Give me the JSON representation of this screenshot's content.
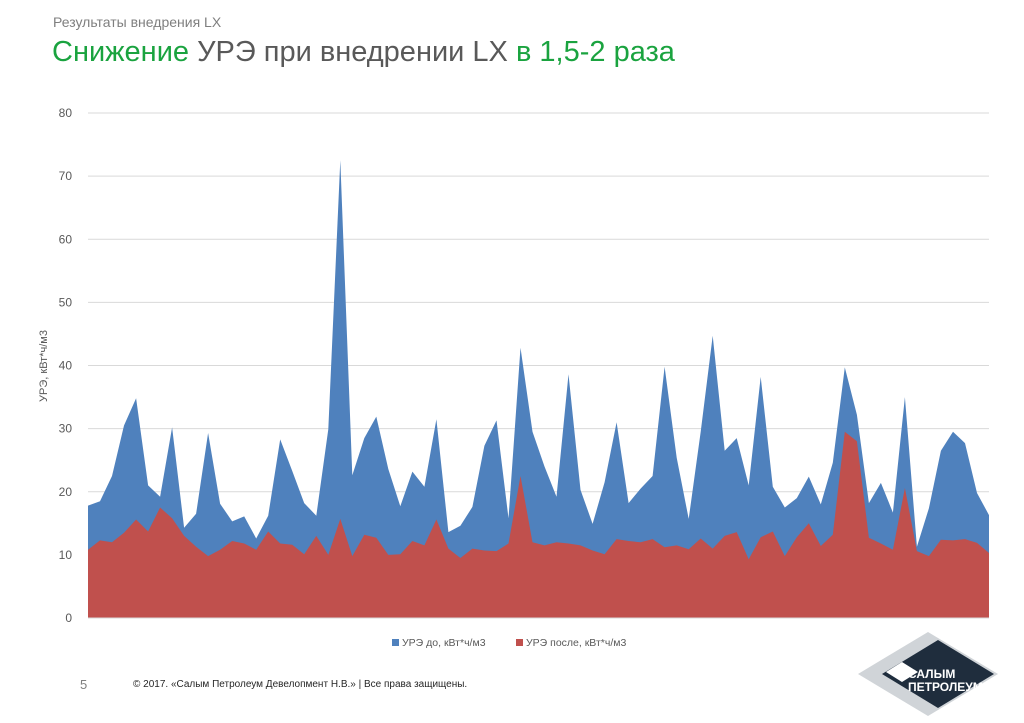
{
  "header": {
    "section": "Результаты внедрения LX",
    "title_parts": [
      "Снижение ",
      "УРЭ при внедрении LX",
      " в 1,5-2 раза"
    ]
  },
  "footer": {
    "page_number": "5",
    "copyright": "© 2017. «Салым Петролеум Девелопмент Н.В.» | Все права защищены.",
    "logo_text_1": "САЛЫМ",
    "logo_text_2": "ПЕТРОЛЕУМ"
  },
  "colors": {
    "series_before": "#4f81bd",
    "series_after": "#c0504d",
    "title_green": "#1aa33f",
    "grid": "#d9d9d9"
  },
  "chart_data": {
    "type": "area",
    "ylabel": "УРЭ, кВт*ч/м3",
    "xlabel": "",
    "ylim": [
      0,
      80
    ],
    "yticks": [
      0,
      10,
      20,
      30,
      40,
      50,
      60,
      70,
      80
    ],
    "grid": true,
    "legend": "bottom",
    "series": [
      {
        "name": "УРЭ до, кВт*ч/м3",
        "color": "#4f81bd",
        "values": [
          17.8,
          18.5,
          22.5,
          30.5,
          34.8,
          21.0,
          19.2,
          30.2,
          14.3,
          16.5,
          29.3,
          18.1,
          15.3,
          16.1,
          12.6,
          16.2,
          28.3,
          23.3,
          18.2,
          16.2,
          29.9,
          72.5,
          22.6,
          28.5,
          31.9,
          23.6,
          17.7,
          23.2,
          20.8,
          31.5,
          13.6,
          14.6,
          17.6,
          27.3,
          31.3,
          15.8,
          42.8,
          29.5,
          24.0,
          19.2,
          38.6,
          20.3,
          14.9,
          21.5,
          31.0,
          18.2,
          20.5,
          22.5,
          39.8,
          25.4,
          15.7,
          29.5,
          44.7,
          26.5,
          28.5,
          21.0,
          38.2,
          20.8,
          17.5,
          19.0,
          22.4,
          18.0,
          24.6,
          39.7,
          32.2,
          18.2,
          21.4,
          16.7,
          35.0,
          11.3,
          17.4,
          26.5,
          29.5,
          27.7,
          19.8,
          16.3
        ]
      },
      {
        "name": "УРЭ после, кВт*ч/м3",
        "color": "#c0504d",
        "values": [
          10.8,
          12.3,
          12.0,
          13.5,
          15.6,
          13.7,
          17.5,
          15.8,
          13.0,
          11.3,
          9.8,
          10.8,
          12.2,
          11.8,
          10.8,
          13.7,
          11.8,
          11.6,
          10.1,
          13.0,
          10.0,
          15.7,
          9.8,
          13.2,
          12.7,
          10.0,
          10.1,
          12.2,
          11.5,
          15.6,
          11.0,
          9.5,
          11.0,
          10.7,
          10.6,
          11.8,
          22.5,
          12.0,
          11.5,
          12.0,
          11.8,
          11.5,
          10.7,
          10.1,
          12.5,
          12.2,
          12.0,
          12.5,
          11.2,
          11.5,
          10.9,
          12.6,
          11.0,
          13.0,
          13.6,
          9.3,
          12.8,
          13.7,
          9.8,
          12.8,
          15.0,
          11.4,
          13.2,
          29.5,
          28.0,
          12.7,
          11.8,
          10.8,
          20.6,
          10.6,
          9.8,
          12.4,
          12.3,
          12.5,
          11.9,
          10.3
        ]
      }
    ]
  }
}
